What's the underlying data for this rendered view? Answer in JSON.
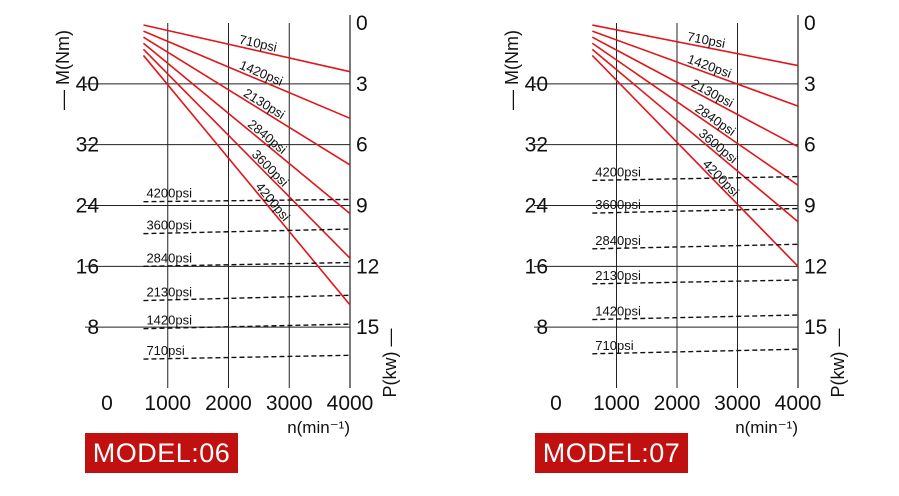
{
  "colors": {
    "power_line": "#e0161b",
    "torque_line": "#111111",
    "grid": "#222222",
    "badge_bg": "#c0100f"
  },
  "chart_data": [
    {
      "type": "line",
      "badge": "MODEL:06",
      "xlabel": "n(min⁻¹)",
      "ylabel_left": "–– M(Nm)",
      "ylabel_right": "P(kw) —",
      "x_ticks": [
        "0",
        "1000",
        "2000",
        "3000",
        "4000"
      ],
      "y_left_ticks": [
        "8",
        "16",
        "24",
        "32",
        "40"
      ],
      "y_right_ticks": [
        "0",
        "3",
        "6",
        "9",
        "12",
        "15"
      ],
      "xlim": [
        0,
        4000
      ],
      "y_left_lim": [
        0,
        48
      ],
      "y_right_lim_inverted": [
        0,
        18
      ],
      "power_series": [
        {
          "name": "710psi",
          "x": [
            600,
            4000
          ],
          "p_kw": [
            0.1,
            2.4
          ]
        },
        {
          "name": "1420psi",
          "x": [
            600,
            4000
          ],
          "p_kw": [
            0.4,
            4.7
          ]
        },
        {
          "name": "2130psi",
          "x": [
            600,
            4000
          ],
          "p_kw": [
            0.7,
            7.0
          ]
        },
        {
          "name": "2840psi",
          "x": [
            600,
            4000
          ],
          "p_kw": [
            1.0,
            9.4
          ]
        },
        {
          "name": "3600psi",
          "x": [
            600,
            4000
          ],
          "p_kw": [
            1.3,
            11.6
          ]
        },
        {
          "name": "4200psi",
          "x": [
            600,
            4000
          ],
          "p_kw": [
            1.6,
            13.9
          ]
        }
      ],
      "torque_series": [
        {
          "name": "4200psi",
          "x": [
            600,
            4000
          ],
          "m_nm": [
            24.5,
            24.8
          ]
        },
        {
          "name": "3600psi",
          "x": [
            600,
            4000
          ],
          "m_nm": [
            20.3,
            20.9
          ]
        },
        {
          "name": "2840psi",
          "x": [
            600,
            4000
          ],
          "m_nm": [
            16.0,
            16.5
          ]
        },
        {
          "name": "2130psi",
          "x": [
            600,
            4000
          ],
          "m_nm": [
            11.5,
            12.2
          ]
        },
        {
          "name": "1420psi",
          "x": [
            600,
            4000
          ],
          "m_nm": [
            7.8,
            8.4
          ]
        },
        {
          "name": "710psi",
          "x": [
            600,
            4000
          ],
          "m_nm": [
            3.8,
            4.3
          ]
        }
      ]
    },
    {
      "type": "line",
      "badge": "MODEL:07",
      "xlabel": "n(min⁻¹)",
      "ylabel_left": "–– M(Nm)",
      "ylabel_right": "P(kw) —",
      "x_ticks": [
        "0",
        "1000",
        "2000",
        "3000",
        "4000"
      ],
      "y_left_ticks": [
        "8",
        "16",
        "24",
        "32",
        "40"
      ],
      "y_right_ticks": [
        "0",
        "3",
        "6",
        "9",
        "12",
        "15"
      ],
      "xlim": [
        0,
        4000
      ],
      "y_left_lim": [
        0,
        48
      ],
      "y_right_lim_inverted": [
        0,
        18
      ],
      "power_series": [
        {
          "name": "710psi",
          "x": [
            600,
            4000
          ],
          "p_kw": [
            0.1,
            2.1
          ]
        },
        {
          "name": "1420psi",
          "x": [
            600,
            4000
          ],
          "p_kw": [
            0.4,
            4.1
          ]
        },
        {
          "name": "2130psi",
          "x": [
            600,
            4000
          ],
          "p_kw": [
            0.7,
            6.1
          ]
        },
        {
          "name": "2840psi",
          "x": [
            600,
            4000
          ],
          "p_kw": [
            1.0,
            8.0
          ]
        },
        {
          "name": "3600psi",
          "x": [
            600,
            4000
          ],
          "p_kw": [
            1.3,
            9.8
          ]
        },
        {
          "name": "4200psi",
          "x": [
            600,
            4000
          ],
          "p_kw": [
            1.6,
            12.0
          ]
        }
      ],
      "torque_series": [
        {
          "name": "4200psi",
          "x": [
            600,
            4000
          ],
          "m_nm": [
            27.3,
            27.8
          ]
        },
        {
          "name": "3600psi",
          "x": [
            600,
            4000
          ],
          "m_nm": [
            23.0,
            23.6
          ]
        },
        {
          "name": "2840psi",
          "x": [
            600,
            4000
          ],
          "m_nm": [
            18.3,
            18.9
          ]
        },
        {
          "name": "2130psi",
          "x": [
            600,
            4000
          ],
          "m_nm": [
            13.7,
            14.2
          ]
        },
        {
          "name": "1420psi",
          "x": [
            600,
            4000
          ],
          "m_nm": [
            9.0,
            9.6
          ]
        },
        {
          "name": "710psi",
          "x": [
            600,
            4000
          ],
          "m_nm": [
            4.5,
            5.1
          ]
        }
      ]
    }
  ]
}
